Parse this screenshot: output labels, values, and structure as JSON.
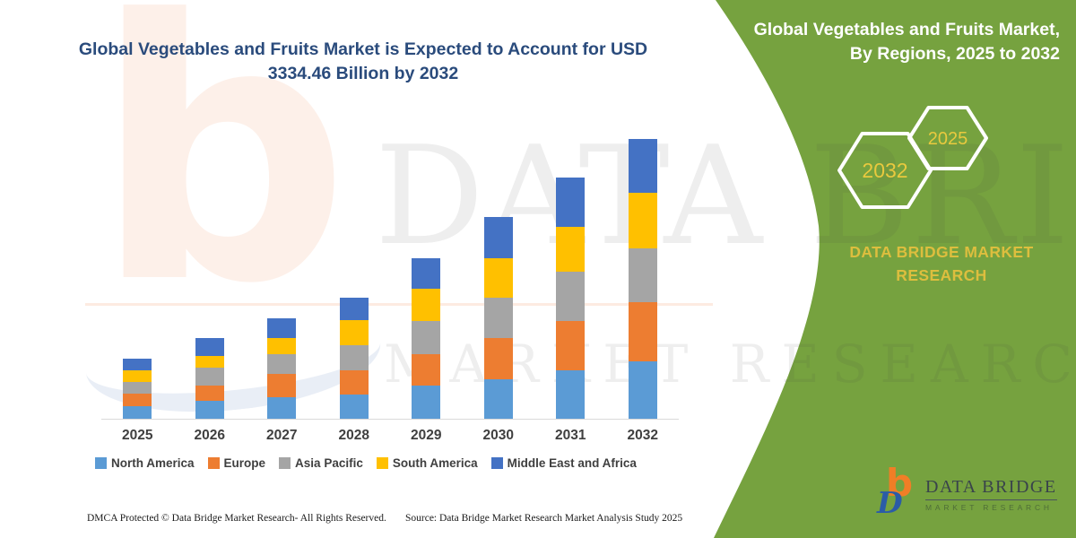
{
  "chart_data": {
    "type": "bar",
    "stacked": true,
    "title": "Global Vegetables and Fruits Market is Expected to Account for USD 3334.46 Billion by 2032",
    "unit": "USD Billion",
    "categories": [
      "2025",
      "2026",
      "2027",
      "2028",
      "2029",
      "2030",
      "2031",
      "2032"
    ],
    "series": [
      {
        "name": "North America",
        "color": "#5B9BD5",
        "values": [
          150,
          214,
          257,
          289,
          395,
          470,
          577,
          684.46
        ]
      },
      {
        "name": "Europe",
        "color": "#ED7D31",
        "values": [
          150,
          182,
          278,
          289,
          374,
          492,
          588,
          705
        ]
      },
      {
        "name": "Asia Pacific",
        "color": "#A5A5A5",
        "values": [
          139,
          214,
          235,
          299,
          395,
          481,
          588,
          641
        ]
      },
      {
        "name": "South America",
        "color": "#FFC000",
        "values": [
          139,
          139,
          192,
          299,
          385,
          470,
          534,
          663
        ]
      },
      {
        "name": "Middle East and Africa",
        "color": "#4472C4",
        "values": [
          139,
          214,
          235,
          267,
          363,
          492,
          588,
          641
        ]
      }
    ],
    "totals": [
      717,
      963,
      1197,
      1443,
      1912,
      2405,
      2875,
      3334.46
    ],
    "ylim": [
      0,
      3345
    ],
    "grid": false,
    "legend_position": "bottom",
    "axis_line_color": "#D9D9D9",
    "title_color": "#2A4B7C"
  },
  "panel": {
    "title_line1": "Global Vegetables and Fruits Market,",
    "title_line2": "By Regions, 2025 to 2032",
    "hex_left_year": "2032",
    "hex_right_year": "2025",
    "brand_caption": "DATA BRIDGE MARKET RESEARCH",
    "background_color": "#76A23F",
    "accent_yellow": "#DDBE3E"
  },
  "logo": {
    "name_text": "DATA BRIDGE",
    "subtext": "MARKET RESEARCH",
    "icon_b": "b",
    "icon_d": "D",
    "orange": "#F07E26",
    "blue": "#2B5CA7"
  },
  "watermark": {
    "line1": "DATA BRIDGE",
    "line2": "MARKET RESEARCH",
    "logo_glyph": "b"
  },
  "footer": {
    "left": "DMCA Protected © Data Bridge Market Research-  All Rights Reserved.",
    "right": "Source: Data Bridge Market Research  Market Analysis Study 2025"
  }
}
